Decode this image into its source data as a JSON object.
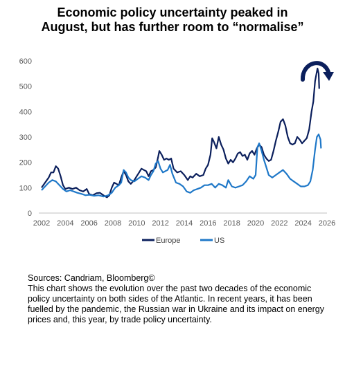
{
  "title_line1": "Economic policy uncertainty peaked in",
  "title_line2": "August, but has further room to “normalise”",
  "sources": "Sources: Candriam, Bloomberg©",
  "description": "This chart shows the evolution over the past two decades of the economic policy uncertainty on both sides of the Atlantic. In recent years, it has been fuelled by the pandemic, the Russian war in Ukraine and its impact on energy prices and, this year, by trade policy uncertainty.",
  "colors": {
    "europe": "#0b1f5c",
    "us": "#1f78c8",
    "axis": "#bfbfbf",
    "text": "#595959"
  },
  "annotation_icon": "curved-arrow-down-right-icon",
  "chart_data": {
    "type": "line",
    "title": "Economic policy uncertainty peaked in August, but has further room to “normalise”",
    "xlim": [
      2002,
      2026
    ],
    "ylim": [
      0,
      600
    ],
    "x_ticks": [
      2002,
      2004,
      2006,
      2008,
      2010,
      2012,
      2014,
      2016,
      2018,
      2020,
      2022,
      2024,
      2026
    ],
    "y_ticks": [
      0,
      100,
      200,
      300,
      400,
      500,
      600
    ],
    "grid": false,
    "legend": "bottom-center",
    "series": [
      {
        "name": "Europe",
        "color": "#0b1f5c",
        "points": [
          [
            2002.0,
            100
          ],
          [
            2002.3,
            120
          ],
          [
            2002.6,
            140
          ],
          [
            2002.8,
            160
          ],
          [
            2003.0,
            160
          ],
          [
            2003.2,
            185
          ],
          [
            2003.4,
            175
          ],
          [
            2003.6,
            145
          ],
          [
            2003.8,
            110
          ],
          [
            2004.0,
            95
          ],
          [
            2004.3,
            100
          ],
          [
            2004.6,
            95
          ],
          [
            2004.9,
            100
          ],
          [
            2005.2,
            90
          ],
          [
            2005.5,
            85
          ],
          [
            2005.8,
            95
          ],
          [
            2006.0,
            75
          ],
          [
            2006.3,
            70
          ],
          [
            2006.6,
            78
          ],
          [
            2006.9,
            80
          ],
          [
            2007.2,
            70
          ],
          [
            2007.5,
            62
          ],
          [
            2007.7,
            70
          ],
          [
            2007.9,
            100
          ],
          [
            2008.1,
            120
          ],
          [
            2008.3,
            115
          ],
          [
            2008.5,
            110
          ],
          [
            2008.7,
            140
          ],
          [
            2008.9,
            165
          ],
          [
            2009.1,
            150
          ],
          [
            2009.3,
            125
          ],
          [
            2009.5,
            115
          ],
          [
            2009.8,
            130
          ],
          [
            2010.0,
            145
          ],
          [
            2010.2,
            160
          ],
          [
            2010.4,
            175
          ],
          [
            2010.6,
            170
          ],
          [
            2010.8,
            165
          ],
          [
            2011.0,
            145
          ],
          [
            2011.2,
            165
          ],
          [
            2011.4,
            170
          ],
          [
            2011.6,
            180
          ],
          [
            2011.8,
            220
          ],
          [
            2011.9,
            245
          ],
          [
            2012.1,
            230
          ],
          [
            2012.3,
            210
          ],
          [
            2012.5,
            215
          ],
          [
            2012.7,
            210
          ],
          [
            2012.9,
            215
          ],
          [
            2013.1,
            175
          ],
          [
            2013.4,
            160
          ],
          [
            2013.7,
            165
          ],
          [
            2014.0,
            150
          ],
          [
            2014.3,
            130
          ],
          [
            2014.5,
            145
          ],
          [
            2014.7,
            140
          ],
          [
            2015.0,
            155
          ],
          [
            2015.3,
            145
          ],
          [
            2015.6,
            150
          ],
          [
            2015.8,
            175
          ],
          [
            2016.0,
            190
          ],
          [
            2016.2,
            230
          ],
          [
            2016.35,
            295
          ],
          [
            2016.5,
            280
          ],
          [
            2016.7,
            255
          ],
          [
            2016.9,
            300
          ],
          [
            2017.1,
            270
          ],
          [
            2017.3,
            250
          ],
          [
            2017.5,
            215
          ],
          [
            2017.7,
            195
          ],
          [
            2017.9,
            210
          ],
          [
            2018.1,
            200
          ],
          [
            2018.3,
            215
          ],
          [
            2018.5,
            235
          ],
          [
            2018.7,
            240
          ],
          [
            2018.9,
            225
          ],
          [
            2019.1,
            230
          ],
          [
            2019.3,
            210
          ],
          [
            2019.5,
            235
          ],
          [
            2019.7,
            245
          ],
          [
            2019.9,
            230
          ],
          [
            2020.1,
            255
          ],
          [
            2020.3,
            270
          ],
          [
            2020.5,
            260
          ],
          [
            2020.7,
            230
          ],
          [
            2020.9,
            215
          ],
          [
            2021.1,
            205
          ],
          [
            2021.3,
            210
          ],
          [
            2021.5,
            245
          ],
          [
            2021.7,
            285
          ],
          [
            2021.9,
            320
          ],
          [
            2022.1,
            360
          ],
          [
            2022.3,
            370
          ],
          [
            2022.5,
            345
          ],
          [
            2022.7,
            300
          ],
          [
            2022.9,
            275
          ],
          [
            2023.1,
            270
          ],
          [
            2023.3,
            275
          ],
          [
            2023.5,
            300
          ],
          [
            2023.7,
            290
          ],
          [
            2023.9,
            275
          ],
          [
            2024.1,
            285
          ],
          [
            2024.3,
            295
          ],
          [
            2024.5,
            330
          ],
          [
            2024.7,
            400
          ],
          [
            2024.85,
            440
          ],
          [
            2025.0,
            520
          ],
          [
            2025.1,
            545
          ],
          [
            2025.2,
            570
          ],
          [
            2025.3,
            550
          ],
          [
            2025.35,
            490
          ]
        ]
      },
      {
        "name": "US",
        "color": "#1f78c8",
        "points": [
          [
            2002.0,
            90
          ],
          [
            2002.3,
            105
          ],
          [
            2002.6,
            120
          ],
          [
            2002.9,
            130
          ],
          [
            2003.2,
            125
          ],
          [
            2003.5,
            110
          ],
          [
            2003.8,
            95
          ],
          [
            2004.1,
            85
          ],
          [
            2004.4,
            90
          ],
          [
            2004.7,
            85
          ],
          [
            2005.0,
            80
          ],
          [
            2005.4,
            75
          ],
          [
            2005.7,
            70
          ],
          [
            2006.0,
            72
          ],
          [
            2006.4,
            68
          ],
          [
            2006.8,
            70
          ],
          [
            2007.2,
            65
          ],
          [
            2007.6,
            70
          ],
          [
            2007.9,
            80
          ],
          [
            2008.2,
            100
          ],
          [
            2008.5,
            110
          ],
          [
            2008.7,
            120
          ],
          [
            2008.9,
            170
          ],
          [
            2009.1,
            160
          ],
          [
            2009.3,
            140
          ],
          [
            2009.5,
            130
          ],
          [
            2009.8,
            125
          ],
          [
            2010.1,
            135
          ],
          [
            2010.4,
            145
          ],
          [
            2010.7,
            140
          ],
          [
            2011.0,
            130
          ],
          [
            2011.2,
            150
          ],
          [
            2011.4,
            165
          ],
          [
            2011.6,
            195
          ],
          [
            2011.8,
            205
          ],
          [
            2012.0,
            175
          ],
          [
            2012.2,
            160
          ],
          [
            2012.4,
            165
          ],
          [
            2012.6,
            170
          ],
          [
            2012.8,
            190
          ],
          [
            2013.0,
            155
          ],
          [
            2013.3,
            120
          ],
          [
            2013.6,
            115
          ],
          [
            2013.9,
            105
          ],
          [
            2014.2,
            85
          ],
          [
            2014.5,
            80
          ],
          [
            2014.8,
            90
          ],
          [
            2015.1,
            95
          ],
          [
            2015.4,
            100
          ],
          [
            2015.7,
            110
          ],
          [
            2016.0,
            110
          ],
          [
            2016.3,
            115
          ],
          [
            2016.6,
            100
          ],
          [
            2016.9,
            115
          ],
          [
            2017.2,
            110
          ],
          [
            2017.5,
            100
          ],
          [
            2017.7,
            130
          ],
          [
            2018.0,
            105
          ],
          [
            2018.3,
            100
          ],
          [
            2018.6,
            105
          ],
          [
            2018.9,
            110
          ],
          [
            2019.2,
            125
          ],
          [
            2019.5,
            145
          ],
          [
            2019.8,
            135
          ],
          [
            2020.0,
            150
          ],
          [
            2020.15,
            260
          ],
          [
            2020.3,
            275
          ],
          [
            2020.5,
            245
          ],
          [
            2020.7,
            210
          ],
          [
            2020.9,
            180
          ],
          [
            2021.1,
            150
          ],
          [
            2021.4,
            140
          ],
          [
            2021.7,
            150
          ],
          [
            2022.0,
            160
          ],
          [
            2022.3,
            170
          ],
          [
            2022.6,
            155
          ],
          [
            2022.9,
            135
          ],
          [
            2023.2,
            125
          ],
          [
            2023.5,
            115
          ],
          [
            2023.8,
            105
          ],
          [
            2024.1,
            105
          ],
          [
            2024.4,
            110
          ],
          [
            2024.6,
            125
          ],
          [
            2024.8,
            170
          ],
          [
            2025.0,
            250
          ],
          [
            2025.15,
            300
          ],
          [
            2025.3,
            310
          ],
          [
            2025.45,
            290
          ],
          [
            2025.5,
            255
          ]
        ]
      }
    ]
  }
}
